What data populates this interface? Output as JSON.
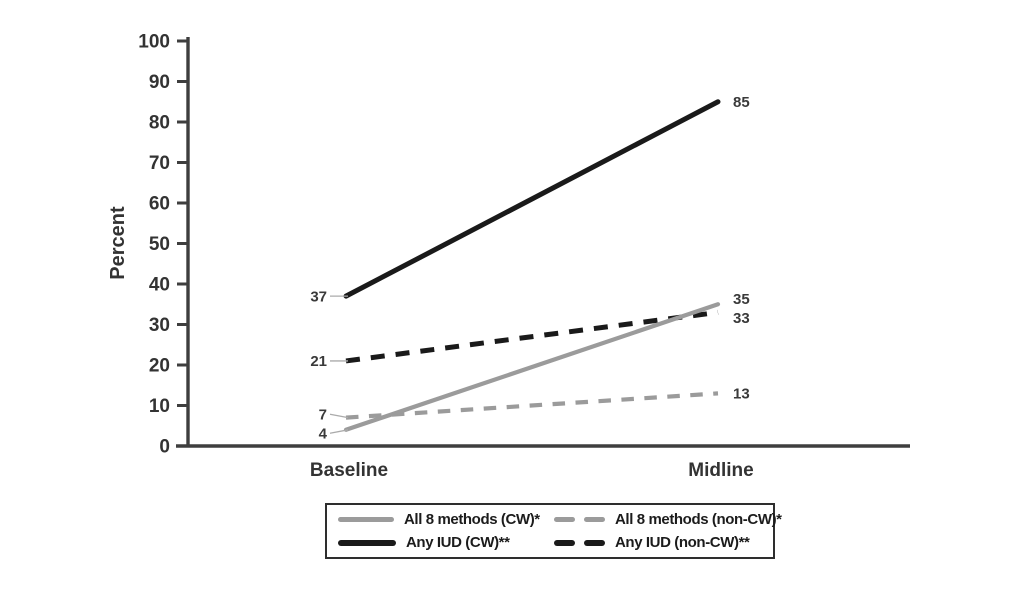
{
  "chart_data": {
    "type": "line",
    "categories": [
      "Baseline",
      "Midline"
    ],
    "series": [
      {
        "name": "All 8 methods (CW)*",
        "values": [
          4,
          35
        ],
        "color": "#9b9b9b",
        "style": "solid"
      },
      {
        "name": "All 8 methods (non-CW)*",
        "values": [
          7,
          13
        ],
        "color": "#9b9b9b",
        "style": "dashed"
      },
      {
        "name": "Any IUD (CW)**",
        "values": [
          37,
          85
        ],
        "color": "#1a1a1a",
        "style": "solid"
      },
      {
        "name": "Any IUD (non-CW)**",
        "values": [
          21,
          33
        ],
        "color": "#1a1a1a",
        "style": "dashed"
      }
    ],
    "point_labels": {
      "baseline": [
        4,
        7,
        37,
        21
      ],
      "midline": [
        35,
        13,
        85,
        33
      ]
    },
    "title": "",
    "xlabel": "",
    "ylabel": "Percent",
    "ylim": [
      0,
      100
    ],
    "y_ticks": [
      0,
      10,
      20,
      30,
      40,
      50,
      60,
      70,
      80,
      90,
      100
    ],
    "grid": false,
    "legend_position": "bottom",
    "colors": {
      "axis": "#3e3e3e",
      "axis_text": "#333333",
      "point_label_text": "#3a3a3a",
      "leader_line": "#ababab",
      "legend_border": "#2e2e2e"
    }
  }
}
